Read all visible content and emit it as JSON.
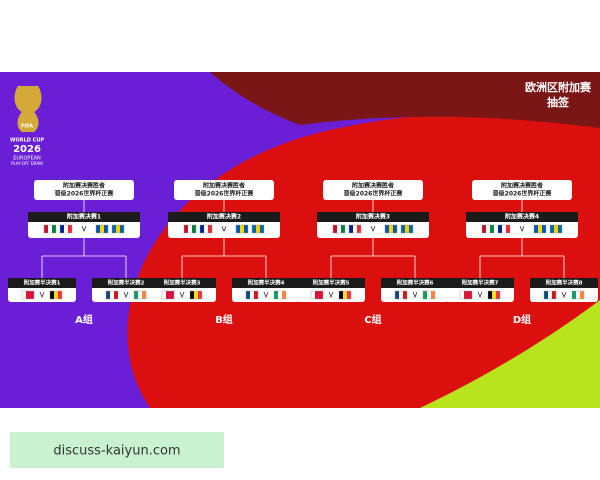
{
  "logo": {
    "org": "FIFA",
    "line1": "WORLD CUP",
    "year": "2026",
    "line2": "EUROPEAN",
    "line3": "PLAY-OFF DRAW"
  },
  "header": {
    "title": "欧洲区附加赛",
    "subtitle": "抽签"
  },
  "groups": [
    {
      "winner": [
        "附加赛决赛胜者",
        "晋级2026世界杯正赛"
      ],
      "final": "附加赛决赛1",
      "semis": [
        "附加赛半决赛1",
        "附加赛半决赛2"
      ],
      "label": "A组"
    },
    {
      "winner": [
        "附加赛决赛胜者",
        "晋级2026世界杯正赛"
      ],
      "final": "附加赛决赛2",
      "semis": [
        "附加赛半决赛3",
        "附加赛半决赛4"
      ],
      "label": "B组"
    },
    {
      "winner": [
        "附加赛决赛胜者",
        "晋级2026世界杯正赛"
      ],
      "final": "附加赛决赛3",
      "semis": [
        "附加赛半决赛5",
        "附加赛半决赛6"
      ],
      "label": "C组"
    },
    {
      "winner": [
        "附加赛决赛胜者",
        "晋级2026世界杯正赛"
      ],
      "final": "附加赛决赛4",
      "semis": [
        "附加赛半决赛7",
        "附加赛半决赛8"
      ],
      "label": "D组"
    }
  ],
  "watermark": "discuss-kaiyun.com"
}
